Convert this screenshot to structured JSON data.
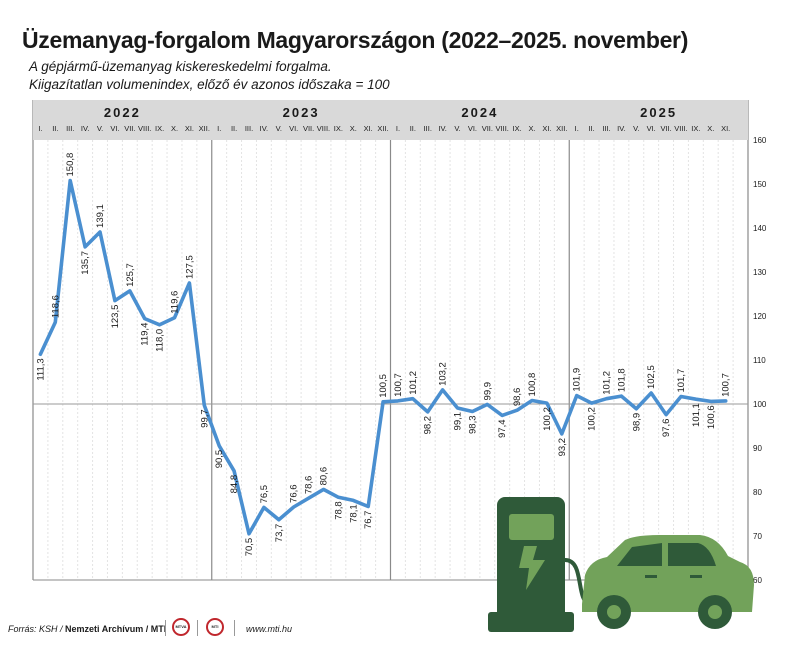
{
  "header": {
    "title": "Üzemanyag-forgalom Magyarországon (2022–2025. november)",
    "subtitle_line1": "A gépjármű-üzemanyag kiskereskedelmi forgalma.",
    "subtitle_line2": "Kiigazítatlan volumenindex, előző év azonos időszaka = 100"
  },
  "chart_data": {
    "type": "line",
    "title": "Üzemanyag-forgalom Magyarországon (2022–2025. november)",
    "ylabel": "Kiigazítatlan volumenindex, előző év azonos időszaka = 100",
    "ylim": [
      60,
      160
    ],
    "yticks": [
      "60",
      "70",
      "80",
      "90",
      "100",
      "110",
      "120",
      "130",
      "140",
      "150",
      "160"
    ],
    "baseline": 100,
    "years": [
      "2022",
      "2023",
      "2024",
      "2025"
    ],
    "month_labels": [
      "I.",
      "II.",
      "III.",
      "IV.",
      "V.",
      "VI.",
      "VII.",
      "VIII.",
      "IX.",
      "X.",
      "XI.",
      "XII."
    ],
    "series": [
      {
        "name": "Volumenindex",
        "color": "#4a8fd0",
        "values": [
          111.3,
          118.6,
          150.8,
          135.7,
          139.1,
          123.5,
          125.7,
          119.4,
          118.0,
          119.6,
          127.5,
          99.7,
          90.5,
          84.8,
          70.5,
          76.5,
          73.7,
          76.6,
          78.6,
          80.6,
          78.8,
          78.1,
          76.7,
          100.5,
          100.7,
          101.2,
          98.2,
          103.2,
          99.1,
          98.3,
          99.9,
          97.4,
          98.6,
          100.8,
          100.2,
          93.2,
          101.9,
          100.2,
          101.2,
          101.8,
          98.9,
          102.5,
          97.6,
          101.7,
          101.1,
          100.6,
          100.7
        ],
        "labels": [
          "111,3",
          "118,6",
          "150,8",
          "135,7",
          "139,1",
          "123,5",
          "125,7",
          "119,4",
          "118,0",
          "119,6",
          "127,5",
          "99,7",
          "90,5",
          "84,8",
          "70,5",
          "76,5",
          "73,7",
          "76,6",
          "78,6",
          "80,6",
          "78,8",
          "78,1",
          "76,7",
          "100,5",
          "100,7",
          "101,2",
          "98,2",
          "103,2",
          "99,1",
          "98,3",
          "99,9",
          "97,4",
          "98,6",
          "100,8",
          "100,2",
          "93,2",
          "101,9",
          "100,2",
          "101,2",
          "101,8",
          "98,9",
          "102,5",
          "97,6",
          "101,7",
          "101,1",
          "100,6",
          "100,7"
        ]
      }
    ]
  },
  "footer": {
    "source_prefix": "Forrás: KSH / ",
    "source_bold": "Nemzeti Archívum / MTI",
    "badge1": "MTVA",
    "badge2": "MTI",
    "website": "www.mti.hu"
  },
  "colors": {
    "line": "#4a8fd0",
    "car": "#72a25a",
    "car_dark": "#2f5a39",
    "pump": "#2f5a39"
  }
}
